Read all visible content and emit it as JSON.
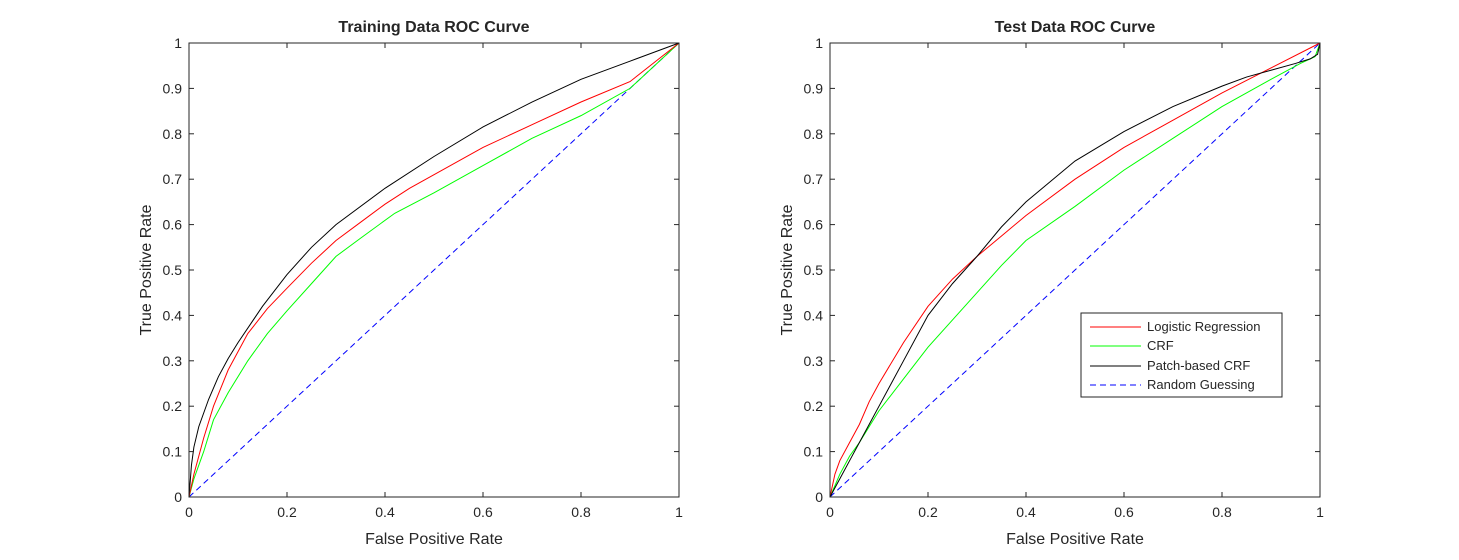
{
  "chart_data": [
    {
      "type": "line",
      "title": "Training Data ROC Curve",
      "xlabel": "False Positive Rate",
      "ylabel": "True Positive Rate",
      "xlim": [
        0,
        1
      ],
      "ylim": [
        0,
        1
      ],
      "xticks": [
        "0",
        "0.2",
        "0.4",
        "0.6",
        "0.8",
        "1"
      ],
      "yticks": [
        "0",
        "0.1",
        "0.2",
        "0.3",
        "0.4",
        "0.5",
        "0.6",
        "0.7",
        "0.8",
        "0.9",
        "1"
      ],
      "grid": false,
      "legend": null,
      "series": [
        {
          "key": "logistic",
          "color": "#ff0000",
          "dash": "solid",
          "x": [
            0,
            0.01,
            0.03,
            0.05,
            0.08,
            0.12,
            0.16,
            0.2,
            0.25,
            0.3,
            0.35,
            0.4,
            0.45,
            0.5,
            0.6,
            0.7,
            0.8,
            0.9,
            1
          ],
          "y": [
            0,
            0.05,
            0.13,
            0.2,
            0.28,
            0.36,
            0.415,
            0.46,
            0.515,
            0.565,
            0.605,
            0.645,
            0.68,
            0.71,
            0.77,
            0.82,
            0.87,
            0.915,
            1
          ]
        },
        {
          "key": "crf",
          "color": "#00ff00",
          "dash": "solid",
          "x": [
            0,
            0.01,
            0.03,
            0.05,
            0.08,
            0.12,
            0.16,
            0.2,
            0.25,
            0.3,
            0.35,
            0.42,
            0.5,
            0.6,
            0.7,
            0.8,
            0.9,
            1
          ],
          "y": [
            0,
            0.04,
            0.1,
            0.17,
            0.23,
            0.3,
            0.36,
            0.41,
            0.47,
            0.53,
            0.57,
            0.625,
            0.67,
            0.73,
            0.79,
            0.84,
            0.9,
            1
          ]
        },
        {
          "key": "patch",
          "color": "#000000",
          "dash": "solid",
          "x": [
            0,
            0.005,
            0.01,
            0.02,
            0.04,
            0.06,
            0.08,
            0.1,
            0.15,
            0.2,
            0.25,
            0.3,
            0.4,
            0.5,
            0.6,
            0.7,
            0.8,
            0.9,
            1
          ],
          "y": [
            0,
            0.07,
            0.11,
            0.155,
            0.215,
            0.265,
            0.305,
            0.34,
            0.42,
            0.49,
            0.55,
            0.6,
            0.68,
            0.75,
            0.815,
            0.87,
            0.92,
            0.96,
            1
          ]
        },
        {
          "key": "random",
          "color": "#0000ff",
          "dash": "dashed",
          "x": [
            0,
            1
          ],
          "y": [
            0,
            1
          ]
        }
      ]
    },
    {
      "type": "line",
      "title": "Test Data ROC Curve",
      "xlabel": "False Positive Rate",
      "ylabel": "True Positive Rate",
      "xlim": [
        0,
        1
      ],
      "ylim": [
        0,
        1
      ],
      "xticks": [
        "0",
        "0.2",
        "0.4",
        "0.6",
        "0.8",
        "1"
      ],
      "yticks": [
        "0",
        "0.1",
        "0.2",
        "0.3",
        "0.4",
        "0.5",
        "0.6",
        "0.7",
        "0.8",
        "0.9",
        "1"
      ],
      "grid": false,
      "legend": "lower-right",
      "series": [
        {
          "key": "logistic",
          "name": "Logistic Regression",
          "color": "#ff0000",
          "dash": "solid",
          "x": [
            0,
            0.01,
            0.02,
            0.04,
            0.06,
            0.08,
            0.1,
            0.15,
            0.2,
            0.25,
            0.3,
            0.35,
            0.4,
            0.5,
            0.6,
            0.7,
            0.8,
            0.9,
            1
          ],
          "y": [
            0,
            0.05,
            0.08,
            0.12,
            0.16,
            0.21,
            0.25,
            0.34,
            0.42,
            0.48,
            0.53,
            0.575,
            0.62,
            0.7,
            0.77,
            0.83,
            0.89,
            0.945,
            1
          ]
        },
        {
          "key": "crf",
          "name": "CRF",
          "color": "#00ff00",
          "dash": "solid",
          "x": [
            0,
            0.01,
            0.02,
            0.04,
            0.06,
            0.08,
            0.1,
            0.15,
            0.2,
            0.25,
            0.3,
            0.35,
            0.4,
            0.5,
            0.6,
            0.7,
            0.8,
            0.9,
            0.96,
            0.99,
            1
          ],
          "y": [
            0,
            0.025,
            0.05,
            0.09,
            0.12,
            0.155,
            0.19,
            0.26,
            0.33,
            0.39,
            0.45,
            0.51,
            0.565,
            0.64,
            0.72,
            0.79,
            0.86,
            0.92,
            0.955,
            0.97,
            1
          ]
        },
        {
          "key": "patch",
          "name": "Patch-based CRF",
          "color": "#000000",
          "dash": "solid",
          "x": [
            0,
            0.01,
            0.02,
            0.04,
            0.06,
            0.08,
            0.1,
            0.15,
            0.2,
            0.25,
            0.3,
            0.35,
            0.4,
            0.5,
            0.6,
            0.7,
            0.8,
            0.85,
            0.9,
            0.95,
            0.98,
            0.995,
            1
          ],
          "y": [
            0,
            0.02,
            0.04,
            0.08,
            0.12,
            0.16,
            0.2,
            0.3,
            0.4,
            0.47,
            0.53,
            0.595,
            0.65,
            0.74,
            0.805,
            0.86,
            0.905,
            0.925,
            0.94,
            0.955,
            0.965,
            0.975,
            1
          ]
        },
        {
          "key": "random",
          "name": "Random Guessing",
          "color": "#0000ff",
          "dash": "dashed",
          "x": [
            0,
            1
          ],
          "y": [
            0,
            1
          ]
        }
      ]
    }
  ]
}
